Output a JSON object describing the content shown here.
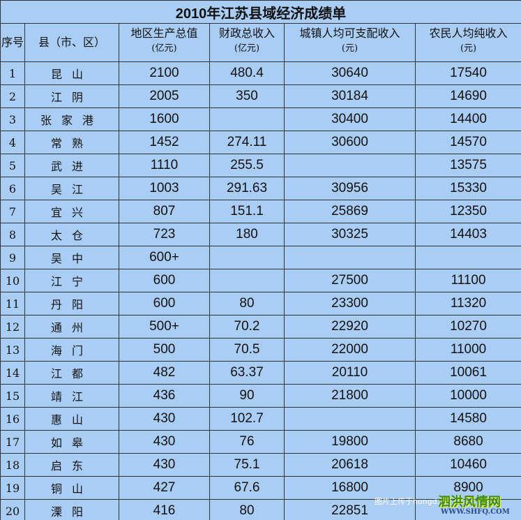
{
  "title": "2010年江苏县域经济成绩单",
  "headers": [
    {
      "label": "序号",
      "unit": ""
    },
    {
      "label": "县（市、区）",
      "unit": ""
    },
    {
      "label": "地区生产总值",
      "unit": "(亿元)"
    },
    {
      "label": "财政总收入",
      "unit": "(亿元)"
    },
    {
      "label": "城镇人均可支配收入",
      "unit": "(元)"
    },
    {
      "label": "农民人均纯收入",
      "unit": "(元)"
    }
  ],
  "rows": [
    [
      "1",
      "昆山",
      "2100",
      "480.4",
      "30640",
      "17540"
    ],
    [
      "2",
      "江阴",
      "2005",
      "350",
      "30184",
      "14690"
    ],
    [
      "3",
      "张家港",
      "1600",
      "",
      "30400",
      "14400"
    ],
    [
      "4",
      "常熟",
      "1452",
      "274.11",
      "30600",
      "14570"
    ],
    [
      "5",
      "武进",
      "1110",
      "255.5",
      "",
      "13575"
    ],
    [
      "6",
      "吴江",
      "1003",
      "291.63",
      "30956",
      "15330"
    ],
    [
      "7",
      "宜兴",
      "807",
      "151.1",
      "25869",
      "12350"
    ],
    [
      "8",
      "太仓",
      "723",
      "180",
      "30325",
      "14403"
    ],
    [
      "9",
      "吴中",
      "600+",
      "",
      "",
      ""
    ],
    [
      "10",
      "江宁",
      "600",
      "",
      "27500",
      "11100"
    ],
    [
      "11",
      "丹阳",
      "600",
      "80",
      "23300",
      "11320"
    ],
    [
      "12",
      "通州",
      "500+",
      "70.2",
      "22920",
      "10270"
    ],
    [
      "13",
      "海门",
      "500",
      "70.5",
      "22000",
      "11000"
    ],
    [
      "14",
      "江都",
      "482",
      "63.37",
      "20110",
      "10061"
    ],
    [
      "15",
      "靖江",
      "436",
      "90",
      "21800",
      "10000"
    ],
    [
      "16",
      "惠山",
      "430",
      "102.7",
      "",
      "14580"
    ],
    [
      "17",
      "如皋",
      "430",
      "76",
      "19800",
      "8680"
    ],
    [
      "18",
      "启东",
      "430",
      "75.1",
      "20618",
      "10460"
    ],
    [
      "19",
      "铜山",
      "427",
      "67.6",
      "16800",
      "8900"
    ],
    [
      "20",
      "溧阳",
      "416",
      "80",
      "22851",
      ""
    ]
  ],
  "watermark": {
    "text": "图片上传于hongd...",
    "logo": "泗洪风情网",
    "logo_url_text": "WWW.SHFQ.COM"
  },
  "colors": {
    "background": "#a9cdf4",
    "border": "#333333"
  }
}
